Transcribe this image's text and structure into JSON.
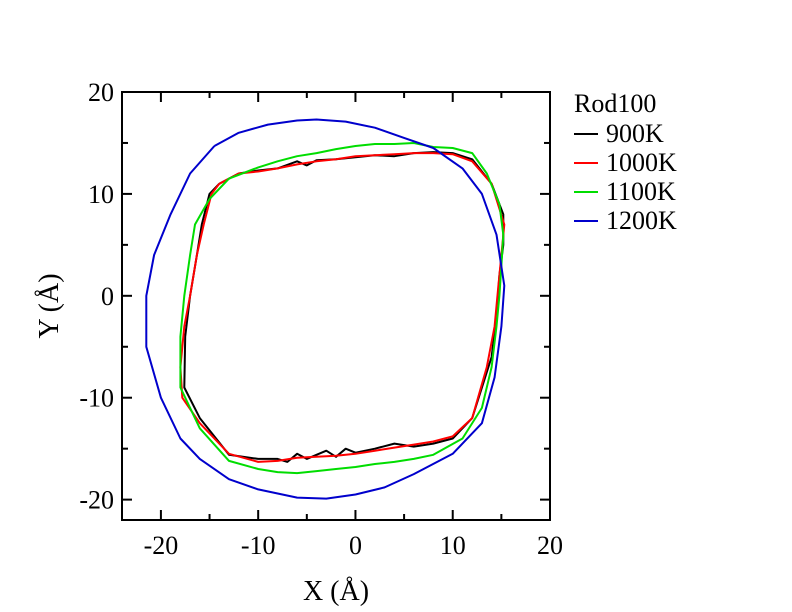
{
  "chart_data": {
    "type": "line",
    "xlabel": "X (Å)",
    "ylabel": "Y (Å)",
    "xlim": [
      -24,
      20
    ],
    "ylim": [
      -22,
      20
    ],
    "x_ticks": [
      -20,
      -10,
      0,
      10,
      20
    ],
    "y_ticks": [
      -20,
      -10,
      0,
      10,
      20
    ],
    "x_tick_labels": [
      "-20",
      "-10",
      "0",
      "10",
      "20"
    ],
    "y_tick_labels": [
      "-20",
      "-10",
      "0",
      "10",
      "20"
    ],
    "grid": false,
    "legend": {
      "title": "Rod100",
      "placement": "right"
    },
    "series": [
      {
        "name": "900K",
        "color": "#000000",
        "points": [
          [
            -14,
            11
          ],
          [
            -12,
            12
          ],
          [
            -10,
            12.3
          ],
          [
            -8,
            12.5
          ],
          [
            -6,
            13.2
          ],
          [
            -5,
            12.8
          ],
          [
            -4,
            13.3
          ],
          [
            -2,
            13.4
          ],
          [
            0,
            13.6
          ],
          [
            2,
            13.8
          ],
          [
            4,
            13.7
          ],
          [
            6,
            14
          ],
          [
            8,
            14.1
          ],
          [
            10,
            14
          ],
          [
            12,
            13.4
          ],
          [
            14,
            11
          ],
          [
            15.2,
            8
          ],
          [
            15.2,
            5
          ],
          [
            14.8,
            2
          ],
          [
            14.5,
            -2
          ],
          [
            14,
            -6
          ],
          [
            12,
            -12
          ],
          [
            10,
            -14
          ],
          [
            8,
            -14.5
          ],
          [
            6,
            -14.8
          ],
          [
            4,
            -14.5
          ],
          [
            2,
            -15
          ],
          [
            0,
            -15.4
          ],
          [
            -1,
            -15
          ],
          [
            -2,
            -15.8
          ],
          [
            -3,
            -15.2
          ],
          [
            -4,
            -15.6
          ],
          [
            -5,
            -16
          ],
          [
            -6,
            -15.5
          ],
          [
            -7,
            -16.3
          ],
          [
            -8,
            -16
          ],
          [
            -10,
            -16
          ],
          [
            -13,
            -15.6
          ],
          [
            -16,
            -12
          ],
          [
            -17.6,
            -9
          ],
          [
            -17.5,
            -4
          ],
          [
            -17,
            0
          ],
          [
            -16.3,
            4
          ],
          [
            -15.8,
            7
          ],
          [
            -15,
            10
          ],
          [
            -14,
            11
          ]
        ]
      },
      {
        "name": "1000K",
        "color": "#ff0000",
        "points": [
          [
            -14,
            11
          ],
          [
            -12,
            12
          ],
          [
            -10,
            12.2
          ],
          [
            -8,
            12.5
          ],
          [
            -6,
            12.9
          ],
          [
            -4,
            13.2
          ],
          [
            -2,
            13.4
          ],
          [
            0,
            13.7
          ],
          [
            2,
            13.8
          ],
          [
            4,
            13.9
          ],
          [
            6,
            14
          ],
          [
            8,
            14
          ],
          [
            10,
            13.9
          ],
          [
            12,
            13.2
          ],
          [
            14,
            11
          ],
          [
            15.3,
            7
          ],
          [
            15,
            4
          ],
          [
            14.7,
            1
          ],
          [
            14.3,
            -3
          ],
          [
            13.5,
            -7
          ],
          [
            12,
            -12
          ],
          [
            10,
            -13.8
          ],
          [
            8,
            -14.3
          ],
          [
            6,
            -14.6
          ],
          [
            4,
            -14.9
          ],
          [
            2,
            -15.2
          ],
          [
            0,
            -15.5
          ],
          [
            -2,
            -15.7
          ],
          [
            -4,
            -15.8
          ],
          [
            -6,
            -15.9
          ],
          [
            -8,
            -16.2
          ],
          [
            -10,
            -16.3
          ],
          [
            -13,
            -15.5
          ],
          [
            -16,
            -12.5
          ],
          [
            -17.8,
            -10
          ],
          [
            -18,
            -7
          ],
          [
            -17.6,
            -3
          ],
          [
            -17,
            0
          ],
          [
            -16.3,
            4
          ],
          [
            -15.6,
            7
          ],
          [
            -14.8,
            10
          ],
          [
            -14,
            11
          ]
        ]
      },
      {
        "name": "1100K",
        "color": "#00dd00",
        "points": [
          [
            -15,
            9.5
          ],
          [
            -13,
            11.5
          ],
          [
            -10,
            12.6
          ],
          [
            -8,
            13.2
          ],
          [
            -6,
            13.7
          ],
          [
            -4,
            14
          ],
          [
            -2,
            14.4
          ],
          [
            0,
            14.7
          ],
          [
            2,
            14.9
          ],
          [
            4,
            14.9
          ],
          [
            6,
            15
          ],
          [
            8,
            14.6
          ],
          [
            10,
            14.5
          ],
          [
            12,
            14
          ],
          [
            13.5,
            12
          ],
          [
            14.8,
            9
          ],
          [
            15.2,
            6
          ],
          [
            15,
            3
          ],
          [
            14.8,
            0
          ],
          [
            14.5,
            -3
          ],
          [
            14,
            -7
          ],
          [
            13,
            -11
          ],
          [
            11,
            -14
          ],
          [
            8,
            -15.6
          ],
          [
            6,
            -16
          ],
          [
            4,
            -16.3
          ],
          [
            2,
            -16.5
          ],
          [
            0,
            -16.8
          ],
          [
            -2,
            -17
          ],
          [
            -4,
            -17.2
          ],
          [
            -6,
            -17.4
          ],
          [
            -8,
            -17.3
          ],
          [
            -10,
            -17
          ],
          [
            -13,
            -16.2
          ],
          [
            -16,
            -13
          ],
          [
            -18,
            -9
          ],
          [
            -18,
            -4
          ],
          [
            -17.6,
            0
          ],
          [
            -17,
            4
          ],
          [
            -16.5,
            7
          ],
          [
            -15,
            9.5
          ]
        ]
      },
      {
        "name": "1200K",
        "color": "#0000cc",
        "points": [
          [
            -14.5,
            14.7
          ],
          [
            -12,
            16
          ],
          [
            -9,
            16.8
          ],
          [
            -6,
            17.2
          ],
          [
            -4,
            17.3
          ],
          [
            -1,
            17.1
          ],
          [
            2,
            16.5
          ],
          [
            5,
            15.5
          ],
          [
            8,
            14.5
          ],
          [
            11,
            12.5
          ],
          [
            13,
            10
          ],
          [
            14.5,
            6
          ],
          [
            15.3,
            1
          ],
          [
            15,
            -3
          ],
          [
            14.3,
            -8
          ],
          [
            13,
            -12.5
          ],
          [
            10,
            -15.5
          ],
          [
            6,
            -17.5
          ],
          [
            3,
            -18.8
          ],
          [
            0,
            -19.5
          ],
          [
            -3,
            -19.9
          ],
          [
            -6,
            -19.8
          ],
          [
            -10,
            -19
          ],
          [
            -13,
            -18
          ],
          [
            -16,
            -16
          ],
          [
            -18,
            -14
          ],
          [
            -20,
            -10
          ],
          [
            -21.5,
            -5
          ],
          [
            -21.5,
            0
          ],
          [
            -20.7,
            4
          ],
          [
            -19,
            8
          ],
          [
            -17,
            12
          ],
          [
            -14.5,
            14.7
          ]
        ]
      }
    ]
  }
}
